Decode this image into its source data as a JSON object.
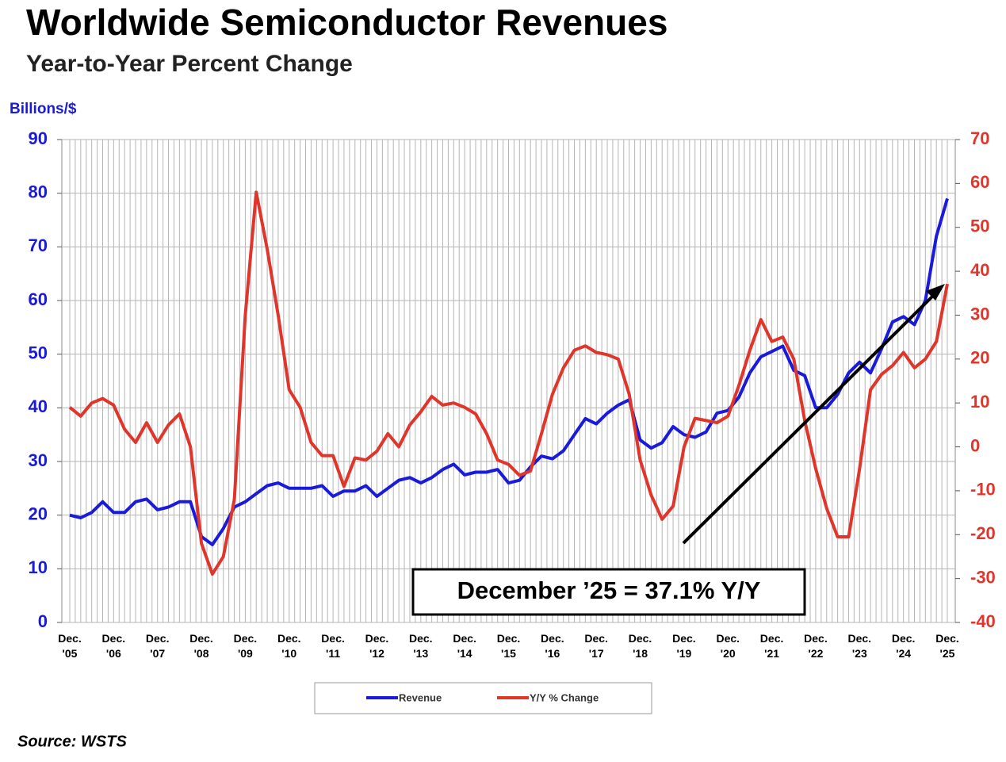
{
  "chart_data": {
    "type": "line",
    "title": "Worldwide Semiconductor Revenues",
    "subtitle": "Year-to-Year Percent Change",
    "y_label": "Billions/$",
    "annotation": "December ’25 = 37.1% Y/Y",
    "source": "Source: WSTS",
    "categories": [
      "Dec. '05",
      null,
      null,
      null,
      "Dec. '06",
      null,
      null,
      null,
      "Dec. '07",
      null,
      null,
      null,
      "Dec. '08",
      null,
      null,
      null,
      "Dec. '09",
      null,
      null,
      null,
      "Dec. '10",
      null,
      null,
      null,
      "Dec. '11",
      null,
      null,
      null,
      "Dec. '12",
      null,
      null,
      null,
      "Dec. '13",
      null,
      null,
      null,
      "Dec. '14",
      null,
      null,
      null,
      "Dec. '15",
      null,
      null,
      null,
      "Dec. '16",
      null,
      null,
      null,
      "Dec. '17",
      null,
      null,
      null,
      "Dec. '18",
      null,
      null,
      null,
      "Dec. '19",
      null,
      null,
      null,
      "Dec. '20",
      null,
      null,
      null,
      "Dec. '21",
      null,
      null,
      null,
      "Dec. '22",
      null,
      null,
      null,
      "Dec. '23",
      null,
      null,
      null,
      "Dec. '24",
      null,
      null,
      null,
      "Dec. '25"
    ],
    "series": [
      {
        "name": "Revenue",
        "color": "#1a1adb",
        "axis": "y",
        "values": [
          20,
          19.5,
          20.5,
          22.5,
          20.5,
          20.5,
          22.5,
          23,
          21,
          21.5,
          22.5,
          22.5,
          16,
          14.5,
          17.5,
          21.5,
          22.5,
          24,
          25.5,
          26,
          25,
          25,
          25,
          25.5,
          23.5,
          24.5,
          24.5,
          25.5,
          23.5,
          25,
          26.5,
          27,
          26,
          27,
          28.5,
          29.5,
          27.5,
          28,
          28,
          28.5,
          26,
          26.5,
          29,
          31,
          30.5,
          32,
          35,
          38,
          37,
          39,
          40.5,
          41.5,
          34,
          32.5,
          33.5,
          36.5,
          35,
          34.5,
          35.5,
          39,
          39.5,
          42,
          46.5,
          49.5,
          50.5,
          51.5,
          47,
          46,
          40,
          40,
          42.5,
          46.5,
          48.5,
          46.5,
          51,
          56,
          57,
          55.5,
          60,
          72,
          79
        ]
      },
      {
        "name": "Y/Y % Change",
        "color": "#e0352b",
        "axis": "y2",
        "values": [
          9,
          7,
          10,
          11,
          9.5,
          4,
          1,
          5.5,
          1,
          5,
          7.5,
          0,
          -22,
          -29,
          -25,
          -12,
          30,
          58,
          45,
          30,
          13,
          9,
          1,
          -2,
          -2,
          -9,
          -2.5,
          -3,
          -1,
          3,
          0,
          5,
          8,
          11.5,
          9.5,
          10,
          9,
          7.5,
          3,
          -3,
          -4,
          -6.5,
          -5.5,
          3,
          12,
          18,
          22,
          23,
          21.5,
          21,
          20,
          12,
          -3,
          -11,
          -16.5,
          -13.5,
          0,
          6.5,
          6,
          5.5,
          7,
          14,
          22,
          29,
          24,
          25,
          20,
          6,
          -5,
          -14,
          -20.5,
          -20.5,
          -5,
          13,
          16.5,
          18.5,
          21.5,
          18,
          20,
          24,
          37.1
        ]
      }
    ],
    "ylim": [
      0,
      90
    ],
    "yticks": [
      0,
      10,
      20,
      30,
      40,
      50,
      60,
      70,
      80,
      90
    ],
    "y2lim": [
      -40,
      70
    ],
    "y2ticks": [
      -40,
      -30,
      -20,
      -10,
      0,
      10,
      20,
      30,
      40,
      50,
      60,
      70
    ],
    "grid": true
  }
}
